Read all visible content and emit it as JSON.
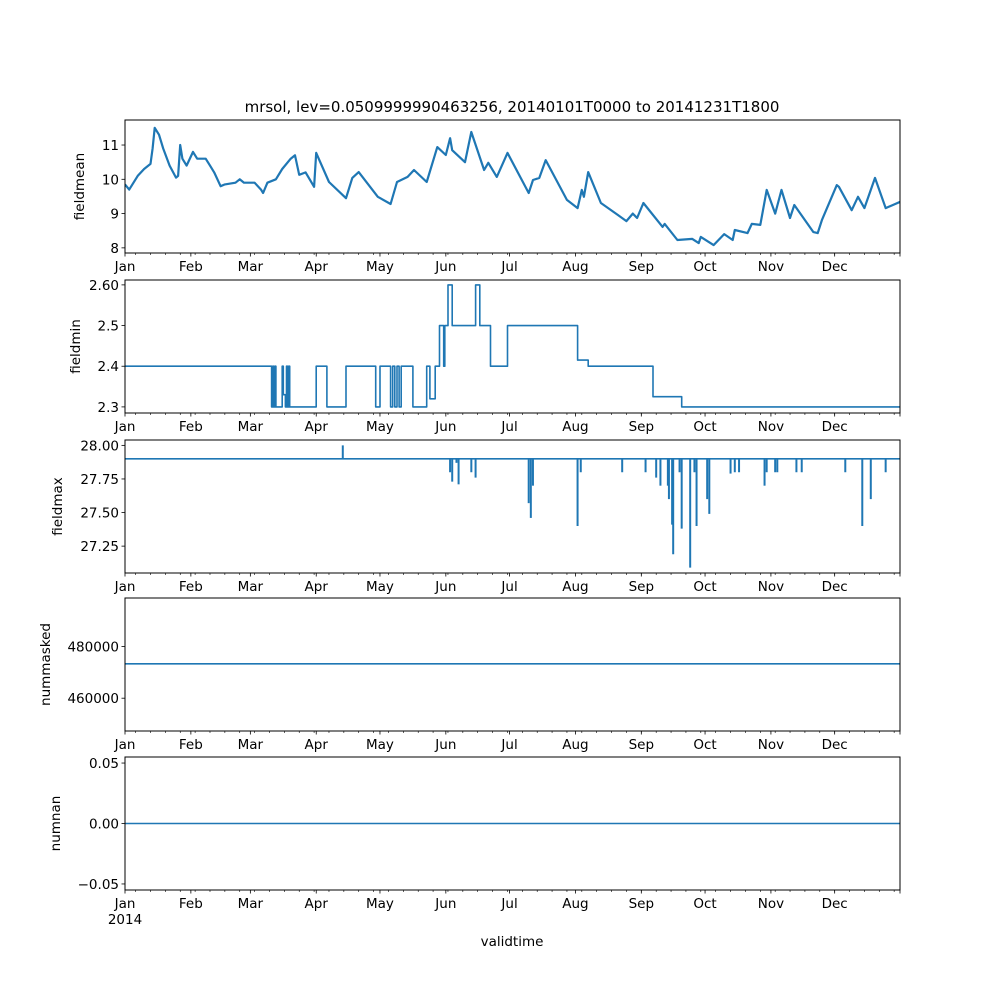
{
  "chart_data": {
    "type": "line",
    "title": "mrsol, lev=0.0509999990463256, 20140101T0000 to 20141231T1800",
    "xlabel": "validtime",
    "x_unit": "day of year 2014",
    "x_range": [
      0,
      364.75
    ],
    "year_label": "2014",
    "color": "#1f77b4",
    "month_ticks": {
      "days": [
        0,
        31,
        59,
        90,
        120,
        151,
        181,
        212,
        243,
        273,
        304,
        334
      ],
      "labels": [
        "Jan",
        "Feb",
        "Mar",
        "Apr",
        "May",
        "Jun",
        "Jul",
        "Aug",
        "Sep",
        "Oct",
        "Nov",
        "Dec"
      ]
    },
    "panels": [
      {
        "ylabel": "fieldmean",
        "kind": "line",
        "ylim": [
          7.85,
          11.73
        ],
        "yticks": [
          8,
          9,
          10,
          11
        ],
        "ytick_labels": [
          "8",
          "9",
          "10",
          "11"
        ],
        "points": [
          [
            0,
            9.85
          ],
          [
            2,
            9.7
          ],
          [
            6,
            10.1
          ],
          [
            9,
            10.3
          ],
          [
            12,
            10.45
          ],
          [
            13,
            10.9
          ],
          [
            14,
            11.5
          ],
          [
            16,
            11.3
          ],
          [
            18,
            10.9
          ],
          [
            21,
            10.4
          ],
          [
            24,
            10.05
          ],
          [
            25,
            10.1
          ],
          [
            26,
            11.0
          ],
          [
            27,
            10.6
          ],
          [
            29,
            10.4
          ],
          [
            32,
            10.8
          ],
          [
            34,
            10.6
          ],
          [
            38,
            10.6
          ],
          [
            40,
            10.4
          ],
          [
            42,
            10.2
          ],
          [
            45,
            9.8
          ],
          [
            47,
            9.85
          ],
          [
            52,
            9.9
          ],
          [
            54,
            10.0
          ],
          [
            56,
            9.9
          ],
          [
            61,
            9.9
          ],
          [
            64,
            9.7
          ],
          [
            65,
            9.6
          ],
          [
            67,
            9.9
          ],
          [
            71,
            10.0
          ],
          [
            74,
            10.3
          ],
          [
            78,
            10.6
          ],
          [
            80,
            10.7
          ],
          [
            82,
            10.13
          ],
          [
            85,
            10.2
          ],
          [
            89,
            9.78
          ],
          [
            90,
            10.77
          ],
          [
            96,
            9.92
          ],
          [
            104,
            9.45
          ],
          [
            107,
            10.04
          ],
          [
            110,
            10.21
          ],
          [
            119,
            9.49
          ],
          [
            125,
            9.28
          ],
          [
            128,
            9.92
          ],
          [
            133,
            10.07
          ],
          [
            136,
            10.27
          ],
          [
            142,
            9.92
          ],
          [
            147,
            10.94
          ],
          [
            151,
            10.71
          ],
          [
            153,
            11.2
          ],
          [
            154,
            10.85
          ],
          [
            160,
            10.5
          ],
          [
            163,
            11.38
          ],
          [
            169,
            10.27
          ],
          [
            171,
            10.48
          ],
          [
            175,
            10.07
          ],
          [
            180,
            10.77
          ],
          [
            190,
            9.6
          ],
          [
            192,
            9.98
          ],
          [
            195,
            10.04
          ],
          [
            198,
            10.56
          ],
          [
            208,
            9.4
          ],
          [
            213,
            9.16
          ],
          [
            215,
            9.69
          ],
          [
            216,
            9.49
          ],
          [
            218,
            10.21
          ],
          [
            224,
            9.31
          ],
          [
            232,
            8.96
          ],
          [
            236,
            8.78
          ],
          [
            239,
            9.0
          ],
          [
            241,
            8.87
          ],
          [
            244,
            9.31
          ],
          [
            253,
            8.61
          ],
          [
            254,
            8.7
          ],
          [
            260,
            8.23
          ],
          [
            267,
            8.26
          ],
          [
            270,
            8.14
          ],
          [
            271,
            8.32
          ],
          [
            277,
            8.08
          ],
          [
            282,
            8.4
          ],
          [
            286,
            8.23
          ],
          [
            287,
            8.52
          ],
          [
            293,
            8.43
          ],
          [
            295,
            8.7
          ],
          [
            299,
            8.67
          ],
          [
            302,
            9.69
          ],
          [
            306,
            9.0
          ],
          [
            309,
            9.69
          ],
          [
            313,
            8.87
          ],
          [
            315,
            9.25
          ],
          [
            324,
            8.46
          ],
          [
            326,
            8.43
          ],
          [
            328,
            8.81
          ],
          [
            335,
            9.83
          ],
          [
            336,
            9.78
          ],
          [
            342,
            9.1
          ],
          [
            345,
            9.49
          ],
          [
            348,
            9.16
          ],
          [
            353,
            10.04
          ],
          [
            358,
            9.16
          ],
          [
            364.75,
            9.34
          ]
        ]
      },
      {
        "ylabel": "fieldmin",
        "kind": "step",
        "ylim": [
          2.285,
          2.612
        ],
        "yticks": [
          2.3,
          2.4,
          2.5,
          2.6
        ],
        "ytick_labels": [
          "2.3",
          "2.4",
          "2.5",
          "2.60"
        ],
        "points": [
          [
            0,
            2.4
          ],
          [
            69,
            2.3
          ],
          [
            69.5,
            2.4
          ],
          [
            70,
            2.3
          ],
          [
            70.5,
            2.4
          ],
          [
            71,
            2.3
          ],
          [
            74,
            2.4
          ],
          [
            74.5,
            2.33
          ],
          [
            75.5,
            2.3
          ],
          [
            76,
            2.4
          ],
          [
            76.5,
            2.3
          ],
          [
            77,
            2.4
          ],
          [
            77.5,
            2.3
          ],
          [
            90,
            2.4
          ],
          [
            95,
            2.3
          ],
          [
            104,
            2.4
          ],
          [
            118,
            2.3
          ],
          [
            120,
            2.4
          ],
          [
            125,
            2.3
          ],
          [
            126,
            2.4
          ],
          [
            127,
            2.3
          ],
          [
            128,
            2.4
          ],
          [
            129,
            2.3
          ],
          [
            130,
            2.4
          ],
          [
            135.5,
            2.3
          ],
          [
            142,
            2.4
          ],
          [
            143.5,
            2.32
          ],
          [
            146,
            2.4
          ],
          [
            148,
            2.5
          ],
          [
            150,
            2.4
          ],
          [
            150.5,
            2.5
          ],
          [
            152,
            2.6
          ],
          [
            154,
            2.5
          ],
          [
            165,
            2.6
          ],
          [
            167,
            2.5
          ],
          [
            172,
            2.4
          ],
          [
            180,
            2.5
          ],
          [
            213,
            2.415
          ],
          [
            218,
            2.4
          ],
          [
            248.5,
            2.325
          ],
          [
            262,
            2.3
          ],
          [
            364.75,
            2.3
          ]
        ]
      },
      {
        "ylabel": "fieldmax",
        "kind": "spikes",
        "ylim": [
          27.05,
          28.04
        ],
        "yticks": [
          27.25,
          27.5,
          27.75,
          28.0
        ],
        "ytick_labels": [
          "27.25",
          "27.50",
          "27.75",
          "28.00"
        ],
        "baseline": 27.9,
        "spikes": [
          [
            102.5,
            28.0
          ],
          [
            153,
            27.8
          ],
          [
            154,
            27.73
          ],
          [
            156,
            27.87
          ],
          [
            157,
            27.71
          ],
          [
            163,
            27.8
          ],
          [
            165,
            27.76
          ],
          [
            190,
            27.57
          ],
          [
            191,
            27.46
          ],
          [
            192,
            27.7
          ],
          [
            213,
            27.4
          ],
          [
            214.5,
            27.8
          ],
          [
            234,
            27.8
          ],
          [
            245,
            27.8
          ],
          [
            250,
            27.76
          ],
          [
            252,
            27.7
          ],
          [
            255.5,
            27.7
          ],
          [
            256,
            27.6
          ],
          [
            257.5,
            27.41
          ],
          [
            258,
            27.19
          ],
          [
            261,
            27.8
          ],
          [
            262,
            27.38
          ],
          [
            266,
            27.09
          ],
          [
            268,
            27.8
          ],
          [
            269,
            27.4
          ],
          [
            274,
            27.6
          ],
          [
            275,
            27.49
          ],
          [
            285,
            27.79
          ],
          [
            287,
            27.8
          ],
          [
            289,
            27.8
          ],
          [
            301,
            27.7
          ],
          [
            302,
            27.8
          ],
          [
            306,
            27.8
          ],
          [
            307,
            27.8
          ],
          [
            316,
            27.8
          ],
          [
            318.5,
            27.8
          ],
          [
            339,
            27.8
          ],
          [
            347,
            27.4
          ],
          [
            351,
            27.6
          ],
          [
            358,
            27.8
          ]
        ]
      },
      {
        "ylabel": "nummasked",
        "kind": "const",
        "ylim": [
          447300,
          498800
        ],
        "yticks": [
          460000,
          480000
        ],
        "ytick_labels": [
          "460000",
          "480000"
        ],
        "value": 473300
      },
      {
        "ylabel": "numnan",
        "kind": "const",
        "ylim": [
          -0.055,
          0.055
        ],
        "yticks": [
          -0.05,
          0.0,
          0.05
        ],
        "ytick_labels": [
          "−0.05",
          "0.00",
          "0.05"
        ],
        "value": 0
      }
    ]
  }
}
